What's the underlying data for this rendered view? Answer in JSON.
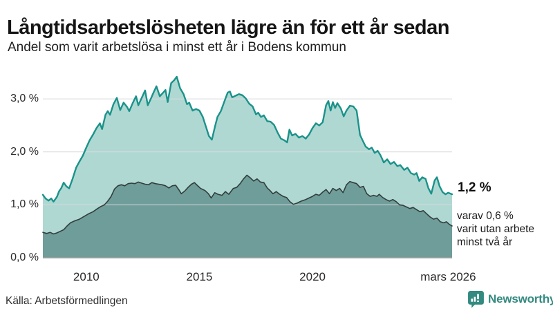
{
  "header": {
    "title": "Långtidsarbetslösheten lägre än för ett år sedan",
    "subtitle": "Andel som varit arbetslösa i minst ett år i Bodens kommun"
  },
  "annotations": {
    "series1_end_value": "1,2 %",
    "note_lines": [
      "varav 0,6 %",
      "varit utan arbete",
      "minst två år"
    ]
  },
  "source": {
    "label": "Källa: Arbetsförmedlingen"
  },
  "branding": {
    "name": "Newsworthy",
    "color": "#338a80"
  },
  "chart_data": {
    "type": "area",
    "title": "Andel som varit arbetslösa i minst ett år i Bodens kommun",
    "unit": "%",
    "grid_on": true,
    "legend_position": "none",
    "xlim": [
      2008.08,
      2026.17
    ],
    "ylim": [
      0,
      3.55
    ],
    "grid_color": "#d9dade",
    "baseline_color": "#9e9e9e",
    "yticks": [
      {
        "value": 3,
        "label": "3,0 %"
      },
      {
        "value": 2,
        "label": "2,0 %"
      },
      {
        "value": 1,
        "label": "1,0 %"
      },
      {
        "value": 0,
        "label": "0,0 %"
      }
    ],
    "xticks": [
      {
        "value": 2010,
        "label": "2010"
      },
      {
        "value": 2015,
        "label": "2015"
      },
      {
        "value": 2020,
        "label": "2020"
      },
      {
        "value": 2026.0,
        "label": "mars 2026"
      }
    ],
    "series": [
      {
        "name": "Arbetslösa minst ett år",
        "end_label": "1,2 %",
        "line_color": "#1a928a",
        "fill_color": "#afd8d2",
        "line_width": 2.4,
        "x": [
          2008.08,
          2008.2,
          2008.33,
          2008.45,
          2008.55,
          2008.7,
          2008.8,
          2008.9,
          2009.0,
          2009.12,
          2009.24,
          2009.4,
          2009.55,
          2009.7,
          2009.85,
          2010.0,
          2010.15,
          2010.3,
          2010.45,
          2010.6,
          2010.7,
          2010.85,
          2010.95,
          2011.05,
          2011.2,
          2011.35,
          2011.5,
          2011.65,
          2011.8,
          2011.9,
          2012.05,
          2012.2,
          2012.3,
          2012.45,
          2012.6,
          2012.72,
          2012.85,
          2012.95,
          2013.1,
          2013.25,
          2013.4,
          2013.5,
          2013.6,
          2013.75,
          2013.88,
          2014.0,
          2014.15,
          2014.3,
          2014.45,
          2014.55,
          2014.7,
          2014.85,
          2015.0,
          2015.15,
          2015.3,
          2015.42,
          2015.55,
          2015.7,
          2015.8,
          2015.95,
          2016.1,
          2016.25,
          2016.35,
          2016.45,
          2016.6,
          2016.75,
          2016.9,
          2017.05,
          2017.2,
          2017.35,
          2017.5,
          2017.6,
          2017.72,
          2017.85,
          2018.0,
          2018.15,
          2018.3,
          2018.45,
          2018.6,
          2018.75,
          2018.88,
          2018.98,
          2019.1,
          2019.25,
          2019.4,
          2019.55,
          2019.7,
          2019.85,
          2020.0,
          2020.15,
          2020.3,
          2020.45,
          2020.6,
          2020.7,
          2020.8,
          2020.9,
          2021.0,
          2021.1,
          2021.25,
          2021.38,
          2021.5,
          2021.65,
          2021.8,
          2021.95,
          2022.1,
          2022.2,
          2022.35,
          2022.5,
          2022.62,
          2022.75,
          2022.88,
          2023.0,
          2023.15,
          2023.3,
          2023.45,
          2023.6,
          2023.75,
          2023.88,
          2024.05,
          2024.2,
          2024.35,
          2024.5,
          2024.6,
          2024.72,
          2024.85,
          2025.0,
          2025.12,
          2025.25,
          2025.4,
          2025.5,
          2025.62,
          2025.75,
          2025.88,
          2026.0,
          2026.17
        ],
        "values": [
          1.19,
          1.12,
          1.08,
          1.12,
          1.06,
          1.15,
          1.26,
          1.32,
          1.42,
          1.35,
          1.31,
          1.5,
          1.7,
          1.82,
          1.93,
          2.08,
          2.22,
          2.33,
          2.45,
          2.54,
          2.43,
          2.7,
          2.77,
          2.7,
          2.9,
          3.02,
          2.79,
          2.93,
          2.85,
          2.77,
          2.92,
          3.05,
          2.88,
          3.02,
          3.16,
          2.88,
          3.0,
          3.1,
          3.24,
          3.05,
          3.12,
          3.17,
          2.94,
          3.3,
          3.35,
          3.42,
          3.2,
          3.09,
          2.9,
          2.93,
          2.78,
          2.81,
          2.78,
          2.66,
          2.46,
          2.3,
          2.23,
          2.5,
          2.66,
          2.77,
          2.95,
          3.12,
          3.14,
          3.03,
          3.06,
          3.09,
          3.07,
          3.01,
          2.91,
          2.86,
          2.71,
          2.74,
          2.66,
          2.69,
          2.58,
          2.57,
          2.51,
          2.37,
          2.25,
          2.22,
          2.18,
          2.42,
          2.31,
          2.34,
          2.27,
          2.3,
          2.25,
          2.33,
          2.45,
          2.54,
          2.5,
          2.56,
          2.88,
          2.96,
          2.78,
          2.94,
          2.83,
          2.92,
          2.82,
          2.67,
          2.78,
          2.87,
          2.86,
          2.78,
          2.32,
          2.23,
          2.1,
          2.05,
          2.08,
          1.98,
          2.02,
          1.94,
          1.8,
          1.86,
          1.77,
          1.81,
          1.73,
          1.75,
          1.66,
          1.7,
          1.6,
          1.57,
          1.6,
          1.45,
          1.52,
          1.49,
          1.32,
          1.21,
          1.46,
          1.52,
          1.35,
          1.24,
          1.2,
          1.23,
          1.2
        ]
      },
      {
        "name": "Varav utan arbete minst två år",
        "end_label": "0,6 %",
        "line_color": "#313e3c",
        "fill_color": "#6f9d99",
        "line_width": 1.6,
        "x": [
          2008.08,
          2008.25,
          2008.4,
          2008.55,
          2008.7,
          2008.85,
          2009.0,
          2009.15,
          2009.3,
          2009.5,
          2009.7,
          2009.9,
          2010.1,
          2010.3,
          2010.5,
          2010.65,
          2010.8,
          2010.95,
          2011.1,
          2011.25,
          2011.4,
          2011.55,
          2011.7,
          2011.85,
          2012.0,
          2012.15,
          2012.3,
          2012.45,
          2012.6,
          2012.75,
          2012.9,
          2013.05,
          2013.2,
          2013.35,
          2013.5,
          2013.65,
          2013.8,
          2013.95,
          2014.1,
          2014.2,
          2014.35,
          2014.5,
          2014.65,
          2014.78,
          2014.9,
          2015.05,
          2015.25,
          2015.4,
          2015.52,
          2015.68,
          2015.82,
          2016.0,
          2016.15,
          2016.3,
          2016.5,
          2016.65,
          2016.8,
          2016.95,
          2017.1,
          2017.25,
          2017.4,
          2017.55,
          2017.7,
          2017.85,
          2018.0,
          2018.12,
          2018.25,
          2018.4,
          2018.55,
          2018.7,
          2018.85,
          2019.0,
          2019.15,
          2019.3,
          2019.5,
          2019.7,
          2019.85,
          2020.0,
          2020.15,
          2020.3,
          2020.45,
          2020.6,
          2020.75,
          2020.9,
          2021.05,
          2021.2,
          2021.35,
          2021.5,
          2021.65,
          2021.8,
          2021.95,
          2022.1,
          2022.25,
          2022.4,
          2022.55,
          2022.7,
          2022.85,
          2022.95,
          2023.1,
          2023.25,
          2023.4,
          2023.55,
          2023.7,
          2023.85,
          2024.0,
          2024.15,
          2024.3,
          2024.45,
          2024.6,
          2024.75,
          2024.9,
          2025.05,
          2025.2,
          2025.35,
          2025.5,
          2025.65,
          2025.8,
          2025.92,
          2026.05,
          2026.17
        ],
        "values": [
          0.48,
          0.46,
          0.48,
          0.45,
          0.47,
          0.5,
          0.53,
          0.6,
          0.66,
          0.7,
          0.73,
          0.78,
          0.83,
          0.87,
          0.93,
          0.97,
          1.0,
          1.07,
          1.16,
          1.3,
          1.36,
          1.38,
          1.36,
          1.4,
          1.41,
          1.4,
          1.43,
          1.41,
          1.39,
          1.38,
          1.42,
          1.4,
          1.39,
          1.38,
          1.36,
          1.32,
          1.36,
          1.37,
          1.28,
          1.21,
          1.26,
          1.33,
          1.39,
          1.42,
          1.37,
          1.31,
          1.27,
          1.21,
          1.13,
          1.23,
          1.2,
          1.18,
          1.25,
          1.2,
          1.31,
          1.33,
          1.4,
          1.49,
          1.56,
          1.51,
          1.45,
          1.49,
          1.43,
          1.42,
          1.32,
          1.27,
          1.21,
          1.25,
          1.2,
          1.16,
          1.14,
          1.06,
          1.01,
          1.03,
          1.07,
          1.1,
          1.13,
          1.16,
          1.2,
          1.18,
          1.24,
          1.29,
          1.21,
          1.31,
          1.27,
          1.31,
          1.23,
          1.38,
          1.44,
          1.42,
          1.4,
          1.33,
          1.35,
          1.21,
          1.16,
          1.18,
          1.16,
          1.2,
          1.14,
          1.1,
          1.07,
          1.1,
          1.06,
          1.0,
          0.99,
          0.96,
          0.93,
          0.95,
          0.91,
          0.87,
          0.89,
          0.83,
          0.77,
          0.73,
          0.75,
          0.68,
          0.66,
          0.68,
          0.63,
          0.6
        ]
      }
    ]
  }
}
